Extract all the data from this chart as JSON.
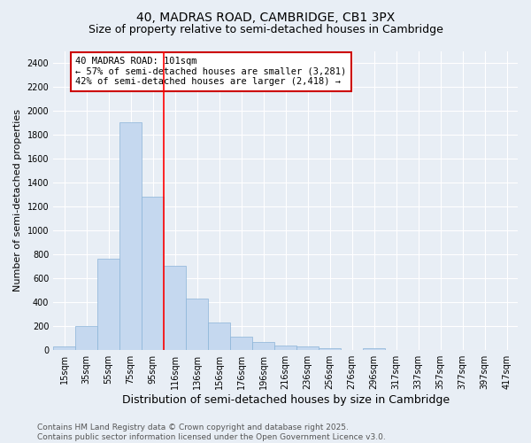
{
  "title1": "40, MADRAS ROAD, CAMBRIDGE, CB1 3PX",
  "title2": "Size of property relative to semi-detached houses in Cambridge",
  "xlabel": "Distribution of semi-detached houses by size in Cambridge",
  "ylabel": "Number of semi-detached properties",
  "bins": [
    "15sqm",
    "35sqm",
    "55sqm",
    "75sqm",
    "95sqm",
    "116sqm",
    "136sqm",
    "156sqm",
    "176sqm",
    "196sqm",
    "216sqm",
    "236sqm",
    "256sqm",
    "276sqm",
    "296sqm",
    "317sqm",
    "337sqm",
    "357sqm",
    "377sqm",
    "397sqm",
    "417sqm"
  ],
  "values": [
    25,
    200,
    760,
    1900,
    1280,
    700,
    430,
    230,
    110,
    65,
    35,
    25,
    15,
    0,
    15,
    0,
    0,
    0,
    0,
    0,
    0
  ],
  "bar_color": "#c5d8ef",
  "bar_edge_color": "#8ab4d8",
  "red_line_bin_idx": 4.5,
  "annotation_text": "40 MADRAS ROAD: 101sqm\n← 57% of semi-detached houses are smaller (3,281)\n42% of semi-detached houses are larger (2,418) →",
  "annotation_box_color": "white",
  "annotation_box_edge_color": "#cc0000",
  "ylim": [
    0,
    2500
  ],
  "yticks": [
    0,
    200,
    400,
    600,
    800,
    1000,
    1200,
    1400,
    1600,
    1800,
    2000,
    2200,
    2400
  ],
  "background_color": "#e8eef5",
  "grid_color": "white",
  "footer": "Contains HM Land Registry data © Crown copyright and database right 2025.\nContains public sector information licensed under the Open Government Licence v3.0.",
  "title1_fontsize": 10,
  "title2_fontsize": 9,
  "xlabel_fontsize": 9,
  "ylabel_fontsize": 8,
  "tick_fontsize": 7,
  "annotation_fontsize": 7.5,
  "footer_fontsize": 6.5
}
